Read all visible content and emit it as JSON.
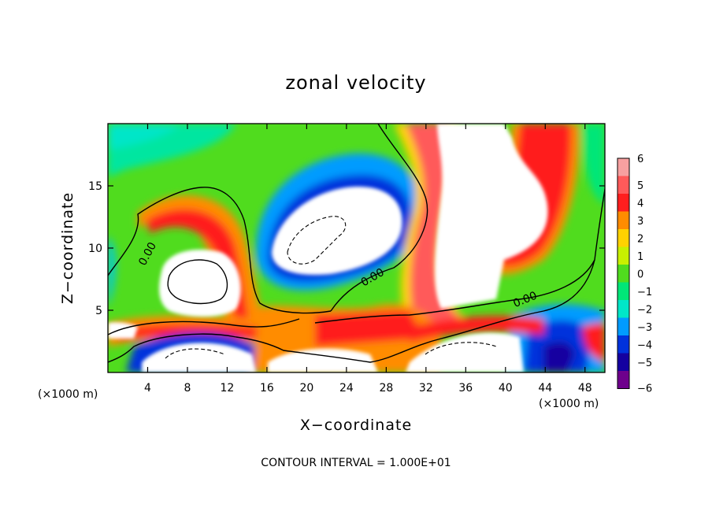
{
  "chart_data": {
    "type": "heatmap",
    "title": "zonal velocity",
    "xlabel": "X−coordinate",
    "ylabel": "Z−coordinate",
    "x_unit_left": "(×1000 m)",
    "x_unit_right": "(×1000 m)",
    "xlim": [
      0,
      50
    ],
    "ylim": [
      0,
      20
    ],
    "x_ticks": [
      4,
      8,
      12,
      16,
      20,
      24,
      28,
      32,
      36,
      40,
      44,
      48
    ],
    "x_tick_labels": [
      "4",
      "8",
      "12",
      "16",
      "20",
      "24",
      "28",
      "32",
      "36",
      "40",
      "44",
      "48"
    ],
    "y_ticks": [
      5,
      10,
      15
    ],
    "y_tick_labels": [
      "5",
      "10",
      "15"
    ],
    "colorbar": {
      "levels": [
        6,
        5,
        4,
        3,
        2,
        1,
        0,
        -1,
        -2,
        -3,
        -4,
        -5,
        -6
      ],
      "labels": [
        "6",
        "5",
        "4",
        "3",
        "2",
        "1",
        "0",
        "−1",
        "−2",
        "−3",
        "−4",
        "−5",
        "−6"
      ],
      "colors": [
        "#f7a0a0",
        "#ff5a5a",
        "#ff1e1e",
        "#ff8c00",
        "#ffd200",
        "#c8f000",
        "#50dc1e",
        "#00e678",
        "#00e6c8",
        "#009bff",
        "#0032dc",
        "#1400a0",
        "#6e008c"
      ]
    },
    "contour_labels": [
      {
        "text": "0.00",
        "x": 4.3,
        "y": 9.4,
        "angle": -62
      },
      {
        "text": "0.00",
        "x": 26.8,
        "y": 7.4,
        "angle": -30
      },
      {
        "text": "0.00",
        "x": 42.1,
        "y": 5.6,
        "angle": -22
      }
    ],
    "footer": "CONTOUR INTERVAL = 1.000E+01"
  }
}
